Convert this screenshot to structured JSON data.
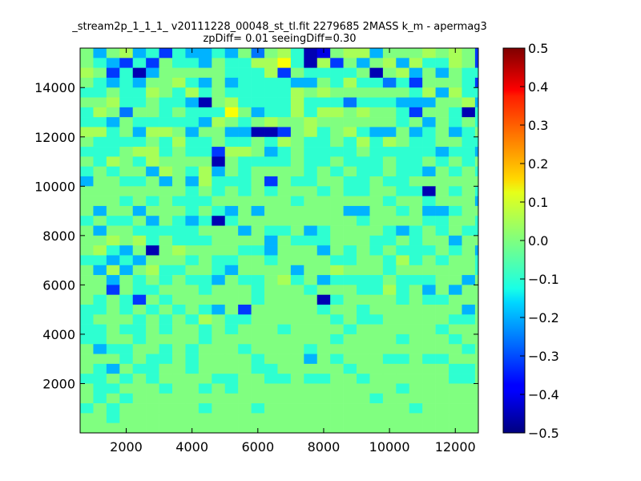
{
  "chart_data": {
    "type": "heatmap",
    "title": "_stream2p_1_1_1_ v20111228_00048_st_tl.fit 2279685 2MASS k_m - apermag3",
    "subtitle": "zpDiff= 0.01 seeingDiff=0.30",
    "xlabel": "",
    "ylabel": "",
    "xlim": [
      600,
      12700
    ],
    "ylim": [
      0,
      15600
    ],
    "x_ticks": [
      2000,
      4000,
      6000,
      8000,
      10000,
      12000
    ],
    "x_tick_labels": [
      "2000",
      "4000",
      "6000",
      "8000",
      "10000",
      "12000"
    ],
    "y_ticks": [
      2000,
      4000,
      6000,
      8000,
      10000,
      12000,
      14000
    ],
    "y_tick_labels": [
      "2000",
      "4000",
      "6000",
      "8000",
      "10000",
      "12000",
      "14000"
    ],
    "colorbar": {
      "colormap": "jet",
      "vmin": -0.5,
      "vmax": 0.5,
      "ticks": [
        -0.5,
        -0.4,
        -0.3,
        -0.2,
        -0.1,
        0.0,
        0.1,
        0.2,
        0.3,
        0.4,
        0.5
      ],
      "tick_labels": [
        "−0.5",
        "−0.4",
        "−0.3",
        "−0.2",
        "−0.1",
        "0.0",
        "0.1",
        "0.2",
        "0.3",
        "0.4",
        "0.5"
      ]
    },
    "grid": false,
    "bin_size": 400,
    "x_bin_start": 600,
    "y_bin_start": 0,
    "rows": [
      "-0-a0.1.00.0-2-a.bn-aa0---a-a-1.---.--",
      "-.01.1-..0-..aa5.ba1-0-a0a..a-10-1-...",
      "a-1.b0-----...a1-....-b-a0-0-..-...b.b",
      "-.0.0--a.0-0....00-.a..2.1---.11-.0a.-",
      "..-..a-.a.-.....a-a------.a0a...0--.-0",
      "--a..-..0b-a....a...2...000--a0-..-0-.",
      ".a-2--.-...5-0..a.aa-a--.1--.b.0...-..",
      "..0-.....0a-.-a--a------.-0-.-.00.--.1",
      "aa.-0aa-0--00bb1-a.-a.00-0.-0.-...-..0",
      "-....-.a..-..-.a-..-.a.a-..--...--..0.",
      "...-aa.-..1aa-0.-....-.....0..0.0-0--a",
      "-.a-.a----b-....-..-...-..-.-.-.-1-..-",
      ".-.--0a-.a0-.----.-.-..-..0-.-..-a.-.-",
      "0--..-0-0a...-1-..--..-..---------..--",
      "--------.-.-.-.---.-..--..b-.-.-..----",
      "---.-.-...------.------.--.---0---.-..",
      "-0--0---.-.0-0------00--.-00.--0-.-..0",
      ".-..-0-.0.b.---------.----..--.---..a.",
      "-0--.....---0-..-0.----.0.-.-...-0-.--",
      "--a-a.-...----0-...---..-.--0--...0...",
      "-a.0-b-a----..0---0-.-.-...-.-0.----a-",
      "..0.0---.-..--.----..--.a.-.--.-0--..-",
      "-0a0-a..--.0----0--a---.------.-0-0--0",
      "--0-.-.-..0-..-a.-0....-...--0-..-.-..",
      "--1-..---.---.---.---..a.-0-0--0..-0.-",
      "-.-.1-.------.----b.----.-..---...----",
      "..-.-.-.-.0-1-----.--.-------0-..--..-",
      ".---.-.-.a-..------.-..-----..-..---.-",
      "..-..-.--.-.---.----.------.---...---.",
      "..--.----.---------.----.---.--..-...-",
      "-0..--.-.---.----.-----------.---.--..",
      "---.-..-.----.---0-.---..-..-----.-.--",
      "-.0-..--.----..-----.-------..-..-.---",
      "..-.-.----..--..-..--.------..----..--",
      "-..---.--.-.------------.-----------.-",
      "-.-.------------------.---------------",
      ".-.------.---.-----------.-----------.",
      "--.-------------------------------.---",
      "--------------------------------------"
    ],
    "value_key": {
      "-": 0.0,
      ".": -0.08,
      "0": -0.2,
      "1": -0.32,
      "a": 0.04,
      "b": -0.45,
      "2": -0.26,
      "5": 0.12,
      "n": -0.4
    }
  }
}
